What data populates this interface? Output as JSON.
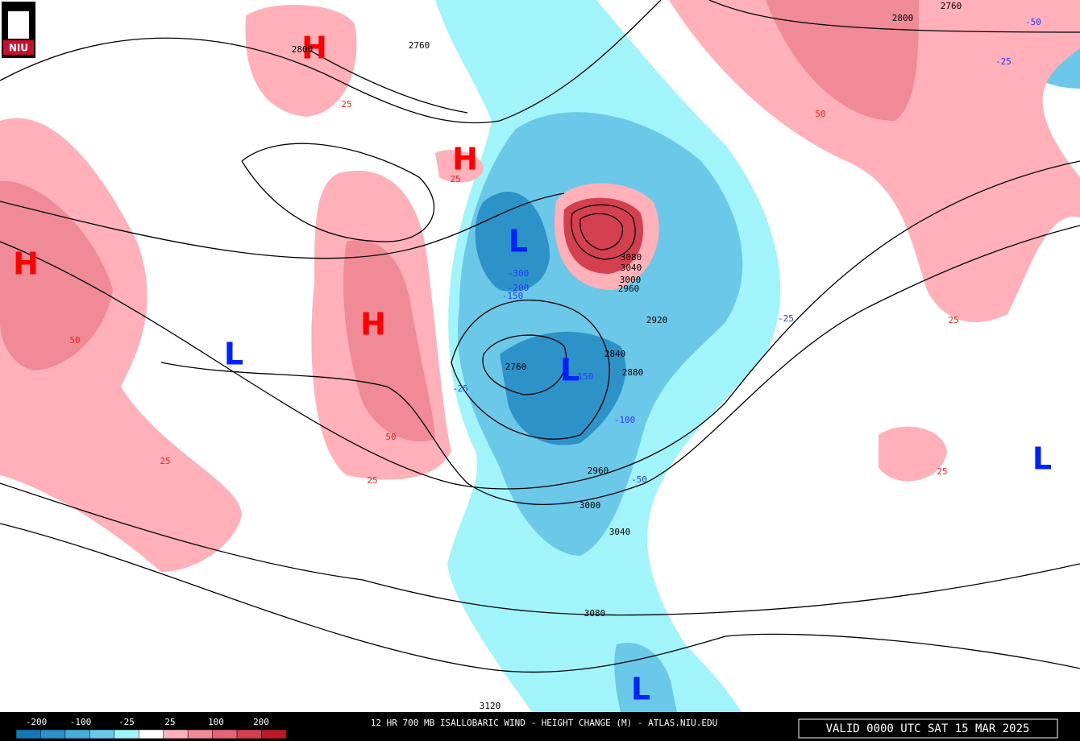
{
  "header": {
    "logo": "NIU"
  },
  "map": {
    "centers": [
      {
        "label": "H",
        "color": "#ff0000"
      },
      {
        "label": "H",
        "color": "#ff0000"
      },
      {
        "label": "H",
        "color": "#ff0000"
      },
      {
        "label": "H",
        "color": "#ff0000"
      },
      {
        "label": "L",
        "color": "#0022ff"
      },
      {
        "label": "L",
        "color": "#0022ff"
      },
      {
        "label": "L",
        "color": "#0022ff"
      },
      {
        "label": "L",
        "color": "#0022ff"
      },
      {
        "label": "L",
        "color": "#0022ff"
      }
    ],
    "height_labels": [
      "2800",
      "2760",
      "2800",
      "2760",
      "2760",
      "2840",
      "2880",
      "2920",
      "2960",
      "3000",
      "3040",
      "3080",
      "3120",
      "3000",
      "3040",
      "3080",
      "2960"
    ],
    "change_labels": [
      {
        "text": "25",
        "color": "#ff2020"
      },
      {
        "text": "25",
        "color": "#ff2020"
      },
      {
        "text": "50",
        "color": "#ff2020"
      },
      {
        "text": "50",
        "color": "#ff2020"
      },
      {
        "text": "25",
        "color": "#ff2020"
      },
      {
        "text": "25",
        "color": "#ff2020"
      },
      {
        "text": "50",
        "color": "#ff2020"
      },
      {
        "text": "25",
        "color": "#ff2020"
      },
      {
        "text": "25",
        "color": "#ff2020"
      },
      {
        "text": "-25",
        "color": "#2040ff"
      },
      {
        "text": "-50",
        "color": "#2040ff"
      },
      {
        "text": "-25",
        "color": "#2040ff"
      },
      {
        "text": "-25",
        "color": "#2040ff"
      },
      {
        "text": "-100",
        "color": "#2040ff"
      },
      {
        "text": "-50",
        "color": "#2040ff"
      },
      {
        "text": "-300",
        "color": "#2040ff"
      },
      {
        "text": "-200",
        "color": "#2040ff"
      },
      {
        "text": "-150",
        "color": "#2040ff"
      },
      {
        "text": "-150",
        "color": "#2040ff"
      }
    ]
  },
  "legend": {
    "labels": [
      "-200",
      "-100",
      "-25",
      "25",
      "100",
      "200"
    ],
    "colors": [
      "#1478b4",
      "#2c92c8",
      "#48acd8",
      "#6cc8e8",
      "#a0f4fa",
      "#ffffff",
      "#ffb0b8",
      "#f08a96",
      "#e46676",
      "#d44050",
      "#c01828"
    ]
  },
  "footer": {
    "title": "12 HR 700 MB ISALLOBARIC WIND - HEIGHT CHANGE (M) - ATLAS.NIU.EDU",
    "valid": "VALID 0000 UTC SAT 15 MAR 2025"
  }
}
